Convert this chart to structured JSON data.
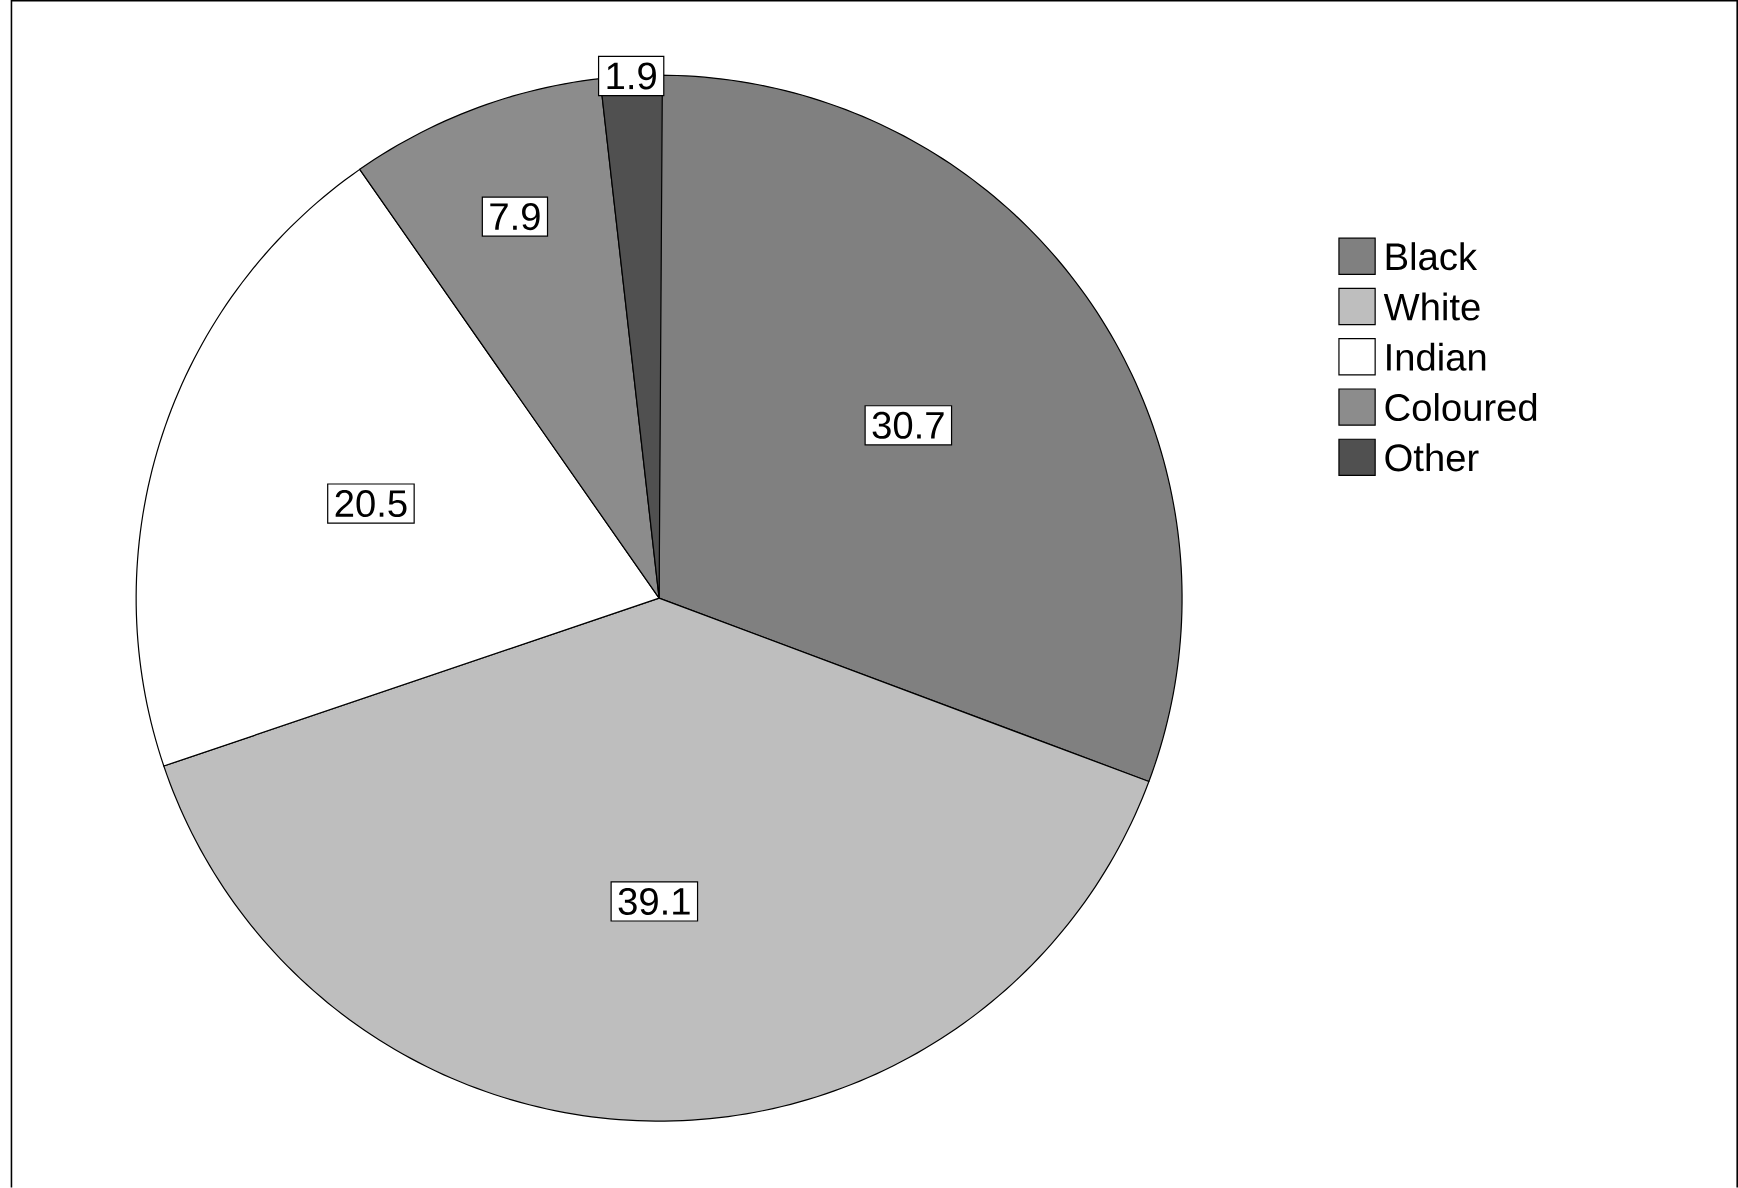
{
  "chart_data": {
    "type": "pie",
    "categories": [
      "Black",
      "White",
      "Indian",
      "Coloured",
      "Other"
    ],
    "values": [
      30.7,
      39.1,
      20.5,
      7.9,
      1.9
    ],
    "colors": [
      "#808080",
      "#bebebe",
      "#ffffff",
      "#8c8c8c",
      "#505050"
    ],
    "value_labels": [
      "30.7",
      "39.1",
      "20.5",
      "7.9",
      "1.9"
    ],
    "legend": "top right"
  }
}
